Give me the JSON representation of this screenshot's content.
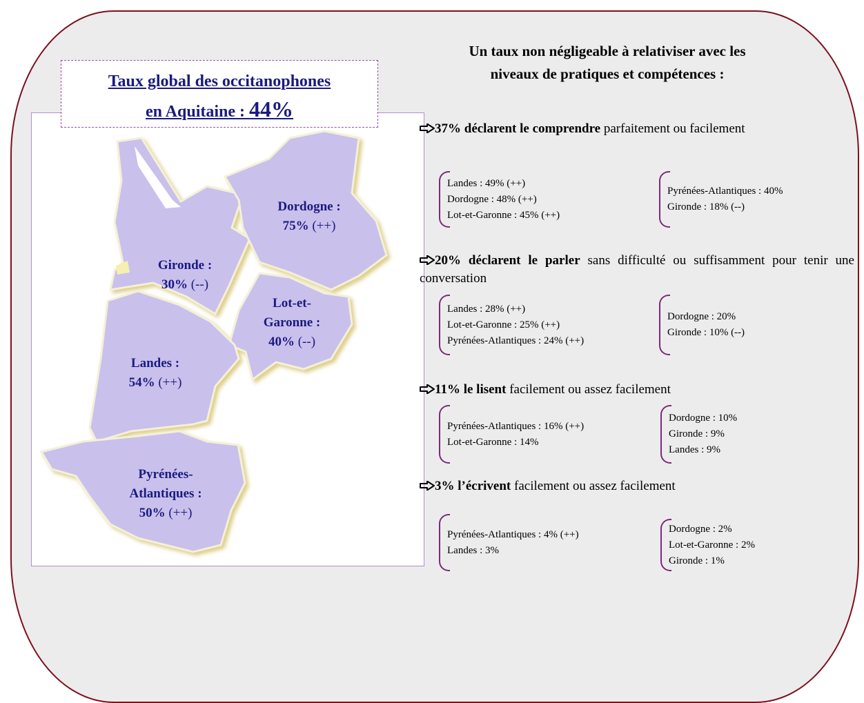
{
  "map": {
    "title_line1": "Taux global des occitanophones",
    "title_line2": "en Aquitaine :",
    "title_rate": "44%",
    "regions": [
      {
        "name_lines": [
          "Dordogne :"
        ],
        "rate": "75%",
        "trend": "(++)"
      },
      {
        "name_lines": [
          "Gironde :"
        ],
        "rate": "30%",
        "trend": "(--)"
      },
      {
        "name_lines": [
          "Lot-et-",
          "Garonne :"
        ],
        "rate": "40%",
        "trend": "(--)"
      },
      {
        "name_lines": [
          "Landes :"
        ],
        "rate": "54%",
        "trend": "(++)"
      },
      {
        "name_lines": [
          "Pyrénées-",
          "Atlantiques :"
        ],
        "rate": "50%",
        "trend": "(++)"
      }
    ]
  },
  "panel": {
    "heading_lines": [
      "Un taux non négligeable à relativiser avec les",
      "niveaux de pratiques et compétences :"
    ],
    "sections": [
      {
        "lead": "37% déclarent le comprendre",
        "text": "parfaitement ou facilement",
        "left": [
          "Landes : 49% (++)",
          "Dordogne : 48% (++)",
          "Lot-et-Garonne : 45% (++)"
        ],
        "right": [
          "Pyrénées-Atlantiques : 40%",
          "Gironde : 18% (--)"
        ]
      },
      {
        "lead": "20% déclarent le parler",
        "text": "sans difficulté ou suffisamment pour tenir une conversation",
        "left": [
          "Landes : 28% (++)",
          "Lot-et-Garonne : 25% (++)",
          "Pyrénées-Atlantiques : 24% (++)"
        ],
        "right": [
          "Dordogne : 20%",
          "Gironde : 10% (--)"
        ]
      },
      {
        "lead": "11% le lisent",
        "text": "facilement ou assez facilement",
        "left": [
          "Pyrénées-Atlantiques : 16% (++)",
          "Lot-et-Garonne : 14%"
        ],
        "right": [
          "Dordogne : 10%",
          "Gironde : 9%",
          "Landes : 9%"
        ]
      },
      {
        "lead": "3% l’écrivent",
        "text": "facilement ou assez facilement",
        "left": [
          "Pyrénées-Atlantiques : 4% (++)",
          "Landes : 3%"
        ],
        "right": [
          "Dordogne : 2%",
          "Lot-et-Garonne : 2%",
          "Gironde : 1%"
        ]
      }
    ]
  }
}
